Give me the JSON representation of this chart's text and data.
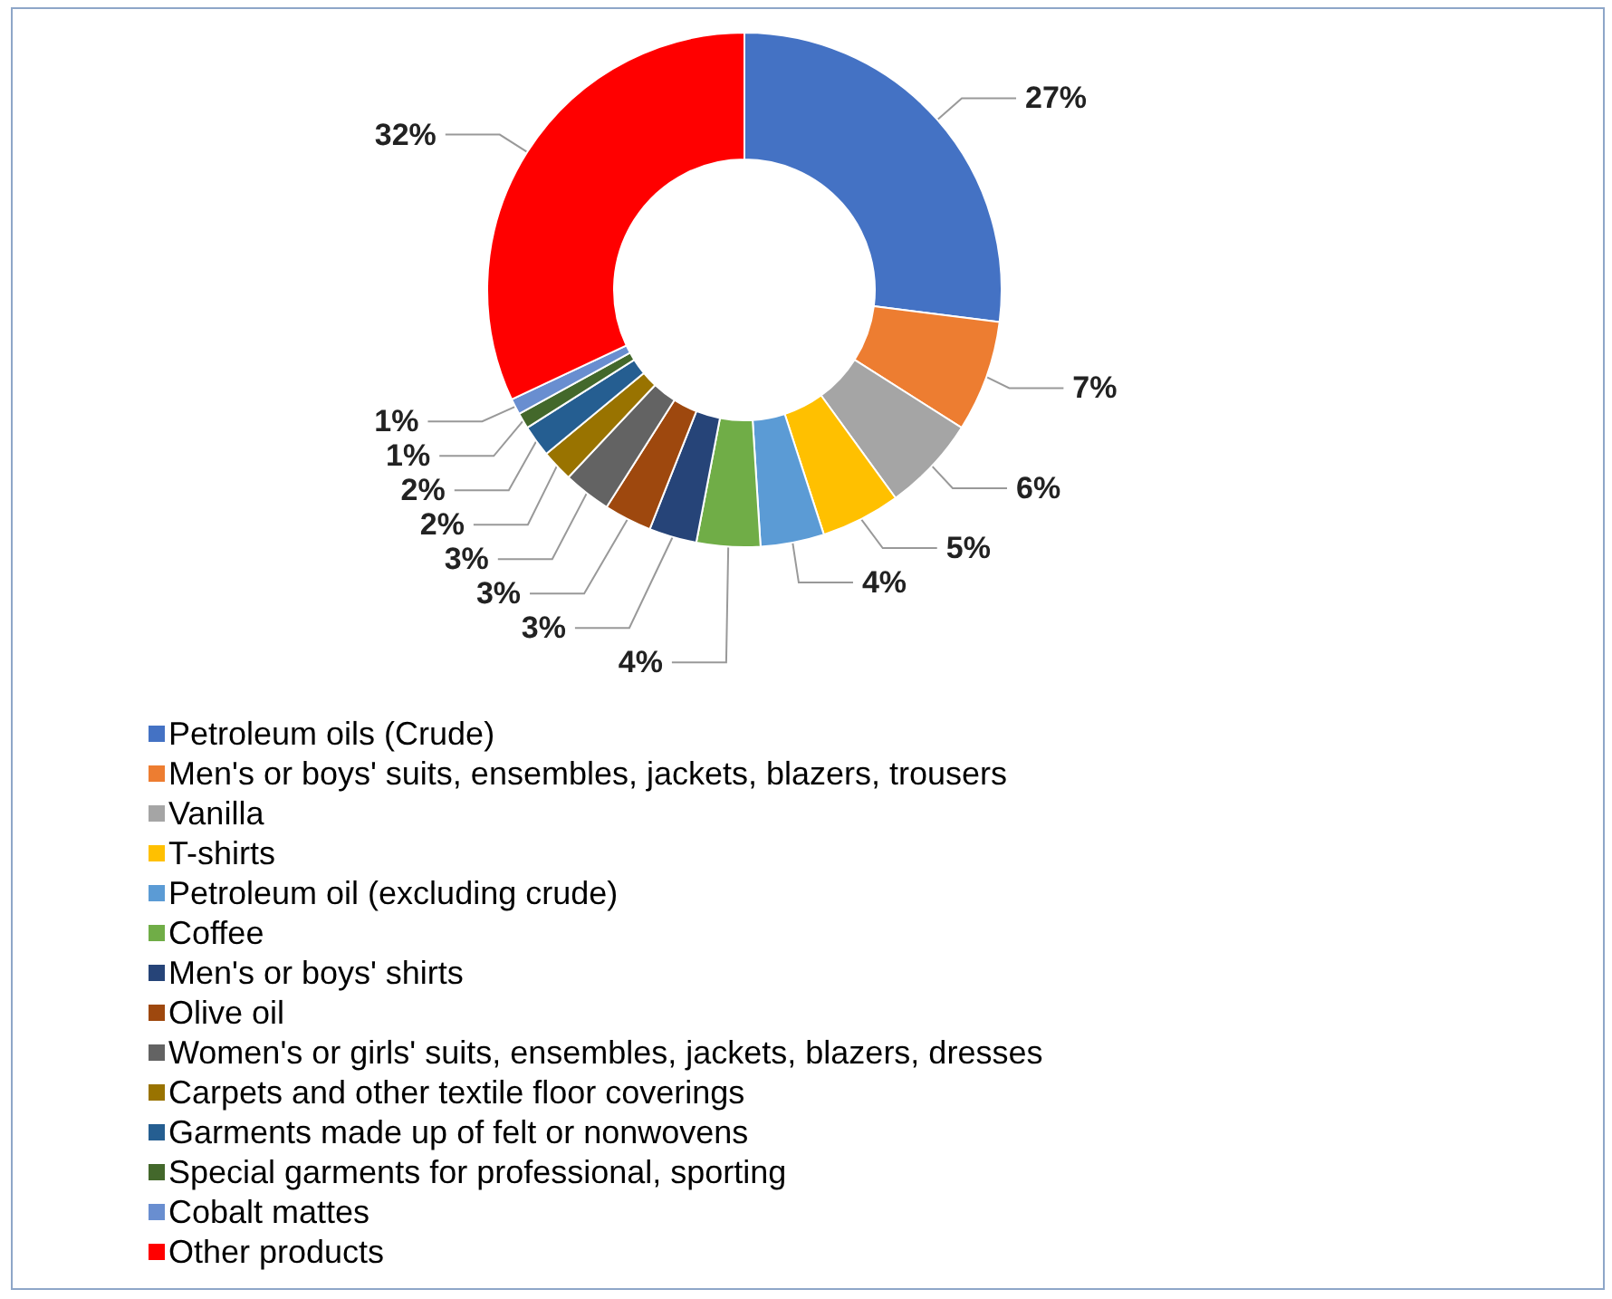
{
  "chart_data": {
    "type": "donut",
    "categories": [
      "Petroleum oils (Crude)",
      "Men's or boys' suits, ensembles, jackets, blazers, trousers",
      "Vanilla",
      "T-shirts",
      "Petroleum oil (excluding crude)",
      "Coffee",
      "Men's or boys' shirts",
      "Olive oil",
      "Women's or girls' suits, ensembles, jackets, blazers, dresses",
      "Carpets and other textile floor coverings",
      "Garments made up of felt or nonwovens",
      "Special garments for professional, sporting",
      "Cobalt mattes",
      "Other products"
    ],
    "values": [
      27,
      7,
      6,
      5,
      4,
      4,
      3,
      3,
      3,
      2,
      2,
      1,
      1,
      32
    ],
    "value_labels": [
      "27%",
      "7%",
      "6%",
      "5%",
      "4%",
      "4%",
      "3%",
      "3%",
      "3%",
      "2%",
      "2%",
      "1%",
      "1%",
      "32%"
    ],
    "colors": [
      "#4472c4",
      "#ed7d31",
      "#a5a5a5",
      "#ffc000",
      "#5b9bd5",
      "#70ad47",
      "#264478",
      "#9e480e",
      "#636363",
      "#997300",
      "#255e91",
      "#43682b",
      "#698ed0",
      "#ff0000"
    ],
    "legend": "bottom"
  }
}
